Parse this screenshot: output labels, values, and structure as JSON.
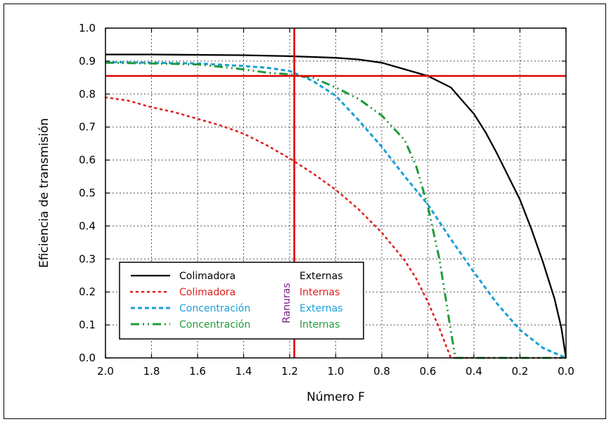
{
  "chart_data": {
    "type": "line",
    "title": "",
    "xlabel": "Número F",
    "ylabel": "Eficiencia de transmisión",
    "xlim": [
      2.0,
      0.0
    ],
    "ylim": [
      0.0,
      1.0
    ],
    "x_reversed": true,
    "grid": true,
    "xticks": [
      "2.0",
      "1.8",
      "1.6",
      "1.4",
      "1.2",
      "1.0",
      "0.8",
      "0.6",
      "0.4",
      "0.2",
      "0.0"
    ],
    "yticks": [
      "0.0",
      "0.1",
      "0.2",
      "0.3",
      "0.4",
      "0.5",
      "0.6",
      "0.7",
      "0.8",
      "0.9",
      "1.0"
    ],
    "reference_lines": {
      "vertical_x": 1.18,
      "horizontal_y": 0.855,
      "color": "#e00000"
    },
    "series": [
      {
        "name": "Colimadora",
        "group": "Externas",
        "color": "#000000",
        "style": "solid",
        "points": [
          [
            2.0,
            0.92
          ],
          [
            1.8,
            0.92
          ],
          [
            1.6,
            0.919
          ],
          [
            1.4,
            0.918
          ],
          [
            1.2,
            0.915
          ],
          [
            1.0,
            0.91
          ],
          [
            0.9,
            0.905
          ],
          [
            0.8,
            0.895
          ],
          [
            0.7,
            0.875
          ],
          [
            0.6,
            0.855
          ],
          [
            0.5,
            0.82
          ],
          [
            0.45,
            0.78
          ],
          [
            0.4,
            0.74
          ],
          [
            0.35,
            0.685
          ],
          [
            0.3,
            0.62
          ],
          [
            0.25,
            0.55
          ],
          [
            0.2,
            0.48
          ],
          [
            0.15,
            0.39
          ],
          [
            0.1,
            0.29
          ],
          [
            0.05,
            0.18
          ],
          [
            0.02,
            0.09
          ],
          [
            0.0,
            0.0
          ]
        ]
      },
      {
        "name": "Colimadora",
        "group": "Internas",
        "color": "#e02020",
        "style": "dotted",
        "points": [
          [
            2.0,
            0.79
          ],
          [
            1.9,
            0.78
          ],
          [
            1.8,
            0.76
          ],
          [
            1.7,
            0.745
          ],
          [
            1.6,
            0.725
          ],
          [
            1.5,
            0.705
          ],
          [
            1.4,
            0.68
          ],
          [
            1.3,
            0.645
          ],
          [
            1.2,
            0.605
          ],
          [
            1.1,
            0.56
          ],
          [
            1.0,
            0.51
          ],
          [
            0.9,
            0.45
          ],
          [
            0.8,
            0.38
          ],
          [
            0.7,
            0.295
          ],
          [
            0.65,
            0.24
          ],
          [
            0.6,
            0.17
          ],
          [
            0.55,
            0.09
          ],
          [
            0.52,
            0.035
          ],
          [
            0.5,
            0.0
          ],
          [
            0.0,
            0.0
          ]
        ]
      },
      {
        "name": "Concentración",
        "group": "Externas",
        "color": "#1a9fd8",
        "style": "dashed",
        "points": [
          [
            2.0,
            0.897
          ],
          [
            1.8,
            0.895
          ],
          [
            1.6,
            0.893
          ],
          [
            1.4,
            0.885
          ],
          [
            1.3,
            0.88
          ],
          [
            1.2,
            0.87
          ],
          [
            1.1,
            0.84
          ],
          [
            1.0,
            0.795
          ],
          [
            0.9,
            0.72
          ],
          [
            0.8,
            0.64
          ],
          [
            0.7,
            0.55
          ],
          [
            0.6,
            0.465
          ],
          [
            0.5,
            0.36
          ],
          [
            0.4,
            0.26
          ],
          [
            0.3,
            0.165
          ],
          [
            0.2,
            0.085
          ],
          [
            0.1,
            0.03
          ],
          [
            0.0,
            0.0
          ]
        ]
      },
      {
        "name": "Concentración",
        "group": "Internas",
        "color": "#1f9a3a",
        "style": "dashdot",
        "points": [
          [
            2.0,
            0.895
          ],
          [
            1.8,
            0.893
          ],
          [
            1.6,
            0.89
          ],
          [
            1.4,
            0.875
          ],
          [
            1.3,
            0.865
          ],
          [
            1.2,
            0.86
          ],
          [
            1.1,
            0.85
          ],
          [
            1.0,
            0.82
          ],
          [
            0.9,
            0.785
          ],
          [
            0.8,
            0.735
          ],
          [
            0.7,
            0.66
          ],
          [
            0.65,
            0.58
          ],
          [
            0.6,
            0.46
          ],
          [
            0.55,
            0.3
          ],
          [
            0.52,
            0.17
          ],
          [
            0.5,
            0.08
          ],
          [
            0.48,
            0.0
          ],
          [
            0.0,
            0.0
          ]
        ]
      }
    ],
    "legend": {
      "position": "bottom-left",
      "rows": [
        {
          "label": "Colimadora",
          "group": "Externas",
          "color": "#000000",
          "group_color": "#000000",
          "style": "solid"
        },
        {
          "label": "Colimadora",
          "group": "Internas",
          "color": "#e02020",
          "group_color": "#e02020",
          "style": "dotted"
        },
        {
          "label": "Concentración",
          "group": "Externas",
          "color": "#1a9fd8",
          "group_color": "#1a9fd8",
          "style": "dashed"
        },
        {
          "label": "Concentración",
          "group": "Internas",
          "color": "#1f9a3a",
          "group_color": "#1f9a3a",
          "style": "dashdot"
        }
      ],
      "side_label": "Ranuras",
      "side_label_color": "#7a1a8a"
    }
  }
}
